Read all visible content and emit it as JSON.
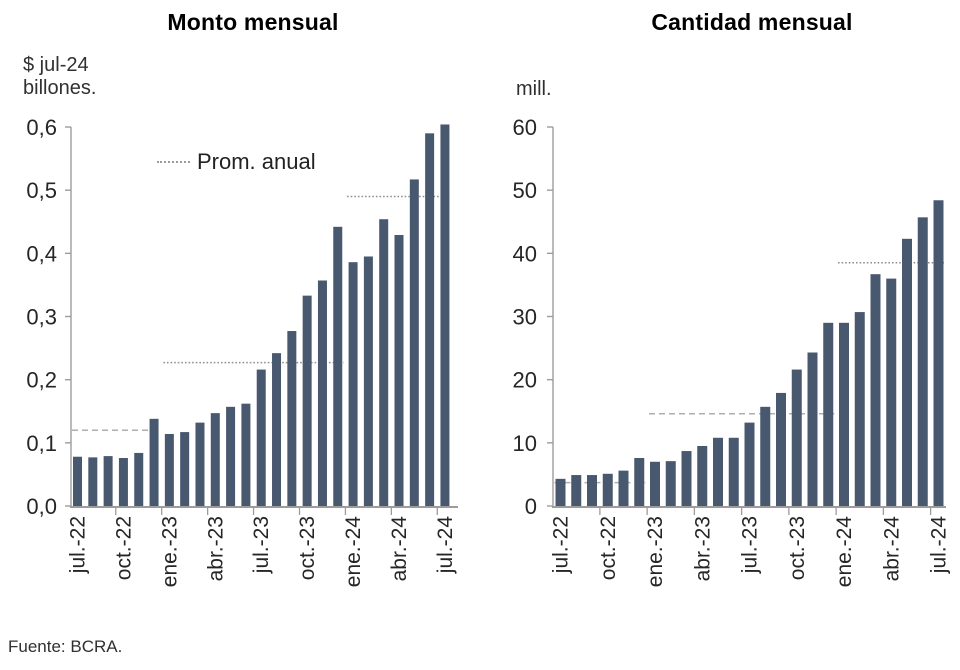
{
  "legend": {
    "label": "Prom. anual"
  },
  "source": "Fuente: BCRA.",
  "colors": {
    "bar": "#48586F",
    "axis": "#9C9C9C",
    "avg_dashed": "#AFAFAF",
    "avg_dotted": "#8F8F8F",
    "tick_text": "#262626",
    "title_text": "#000000"
  },
  "chart_data": [
    {
      "type": "bar",
      "title": "Monto mensual",
      "unit_lines": [
        "$ jul-24",
        "billones."
      ],
      "ylim": [
        0,
        0.6
      ],
      "ytick_values": [
        0,
        0.1,
        0.2,
        0.3,
        0.4,
        0.5,
        0.6
      ],
      "ytick_labels": [
        "0,0",
        "0,1",
        "0,2",
        "0,3",
        "0,4",
        "0,5",
        "0,6"
      ],
      "categories": [
        "jul-22",
        "ago-22",
        "sep-22",
        "oct-22",
        "nov-22",
        "dic-22",
        "ene-23",
        "feb-23",
        "mar-23",
        "abr-23",
        "may-23",
        "jun-23",
        "jul-23",
        "ago-23",
        "sep-23",
        "oct-23",
        "nov-23",
        "dic-23",
        "ene-24",
        "feb-24",
        "mar-24",
        "abr-24",
        "may-24",
        "jun-24",
        "jul-24"
      ],
      "xtick_labels": [
        "jul.-22",
        "oct.-22",
        "ene.-23",
        "abr.-23",
        "jul.-23",
        "oct.-23",
        "ene.-24",
        "abr.-24",
        "jul.-24"
      ],
      "values": [
        0.078,
        0.077,
        0.079,
        0.076,
        0.084,
        0.138,
        0.114,
        0.117,
        0.132,
        0.147,
        0.157,
        0.162,
        0.216,
        0.242,
        0.277,
        0.333,
        0.357,
        0.442,
        0.386,
        0.395,
        0.454,
        0.429,
        0.517,
        0.59,
        0.604
      ],
      "avg_lines": [
        {
          "year": "2022",
          "value": 0.12,
          "style": "dashed",
          "from_index": 0,
          "to_index": 5
        },
        {
          "year": "2023",
          "value": 0.227,
          "style": "dotted",
          "from_index": 6,
          "to_index": 17
        },
        {
          "year": "2024",
          "value": 0.49,
          "style": "dotted",
          "from_index": 18,
          "to_index": 24
        }
      ],
      "grid": false,
      "legend_entry": "Prom. anual"
    },
    {
      "type": "bar",
      "title": "Cantidad mensual",
      "unit_lines": [
        "mill."
      ],
      "ylim": [
        0,
        60
      ],
      "ytick_values": [
        0,
        10,
        20,
        30,
        40,
        50,
        60
      ],
      "ytick_labels": [
        "0",
        "10",
        "20",
        "30",
        "40",
        "50",
        "60"
      ],
      "categories": [
        "jul-22",
        "ago-22",
        "sep-22",
        "oct-22",
        "nov-22",
        "dic-22",
        "ene-23",
        "feb-23",
        "mar-23",
        "abr-23",
        "may-23",
        "jun-23",
        "jul-23",
        "ago-23",
        "sep-23",
        "oct-23",
        "nov-23",
        "dic-23",
        "ene-24",
        "feb-24",
        "mar-24",
        "abr-24",
        "may-24",
        "jun-24",
        "jul-24"
      ],
      "xtick_labels": [
        "jul.-22",
        "oct.-22",
        "ene.-23",
        "abr.-23",
        "jul.-23",
        "oct.-23",
        "ene.-24",
        "abr.-24",
        "jul.-24"
      ],
      "values": [
        4.3,
        4.9,
        4.9,
        5.1,
        5.6,
        7.6,
        7.0,
        7.1,
        8.7,
        9.5,
        10.8,
        10.8,
        13.2,
        15.7,
        17.9,
        21.6,
        24.3,
        29.0,
        29.0,
        30.7,
        36.7,
        36.0,
        42.3,
        45.7,
        48.4
      ],
      "avg_lines": [
        {
          "year": "2022",
          "value": 3.7,
          "style": "dashed",
          "from_index": 0,
          "to_index": 5
        },
        {
          "year": "2023",
          "value": 14.6,
          "style": "dashed",
          "from_index": 6,
          "to_index": 17
        },
        {
          "year": "2024",
          "value": 38.5,
          "style": "dotted",
          "from_index": 18,
          "to_index": 24
        }
      ],
      "grid": false,
      "legend_entry": "Prom. anual"
    }
  ]
}
